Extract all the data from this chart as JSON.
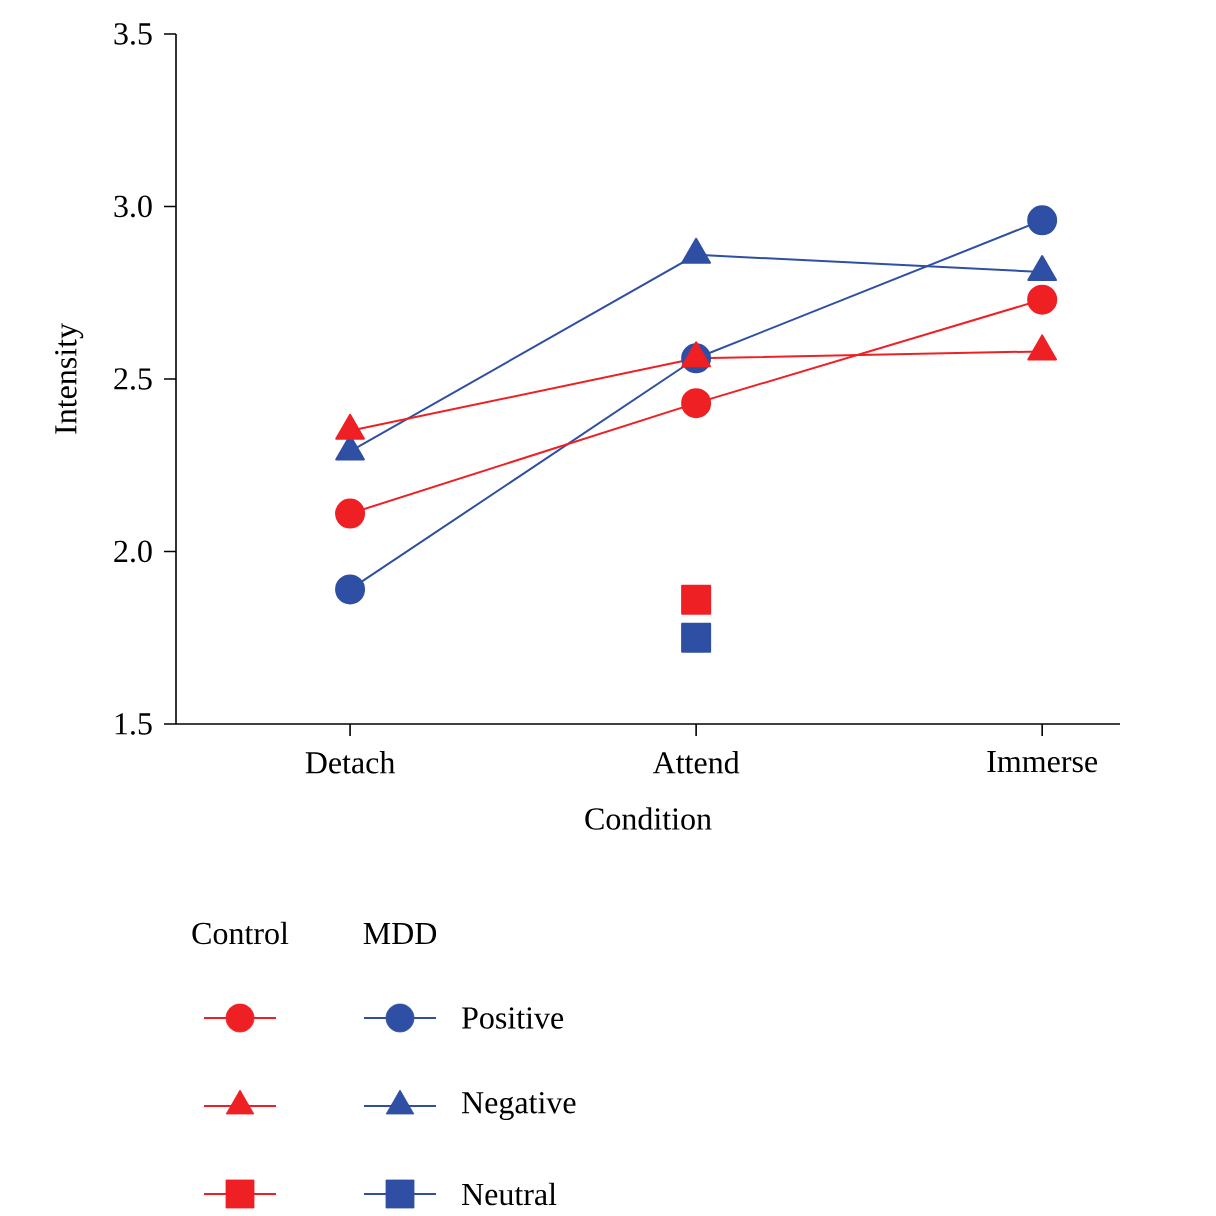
{
  "chart_data": {
    "type": "line",
    "xlabel": "Condition",
    "ylabel": "Intensity",
    "categories": [
      "Detach",
      "Attend",
      "Immerse"
    ],
    "ylim": [
      1.5,
      3.5
    ],
    "yticks": [
      {
        "value": 1.5,
        "label": "1.5"
      },
      {
        "value": 2.0,
        "label": "2.0"
      },
      {
        "value": 2.5,
        "label": "2.5"
      },
      {
        "value": 3.0,
        "label": "3.0"
      },
      {
        "value": 3.5,
        "label": "3.5"
      }
    ],
    "series": [
      {
        "color": "#ee2024",
        "marker": "circle",
        "values": [
          2.11,
          2.43,
          2.73
        ]
      },
      {
        "color": "#ee2024",
        "marker": "triangle",
        "values": [
          2.35,
          2.56,
          2.58
        ]
      },
      {
        "color": "#ee2024",
        "marker": "square",
        "values": [
          null,
          1.86,
          null
        ]
      },
      {
        "name": "Positive",
        "color": "#2e4fa3",
        "marker": "circle",
        "values": [
          1.89,
          2.56,
          2.96
        ]
      },
      {
        "name": "Negative",
        "color": "#2e4fa3",
        "marker": "triangle",
        "values": [
          2.29,
          2.86,
          2.81
        ]
      },
      {
        "name": "Neutral",
        "color": "#2e4fa3",
        "marker": "square",
        "values": [
          null,
          1.75,
          null
        ]
      }
    ],
    "annotations": [
      "Control",
      "MDD"
    ],
    "legend": "bottom",
    "grid": false,
    "line_style": "solid"
  }
}
